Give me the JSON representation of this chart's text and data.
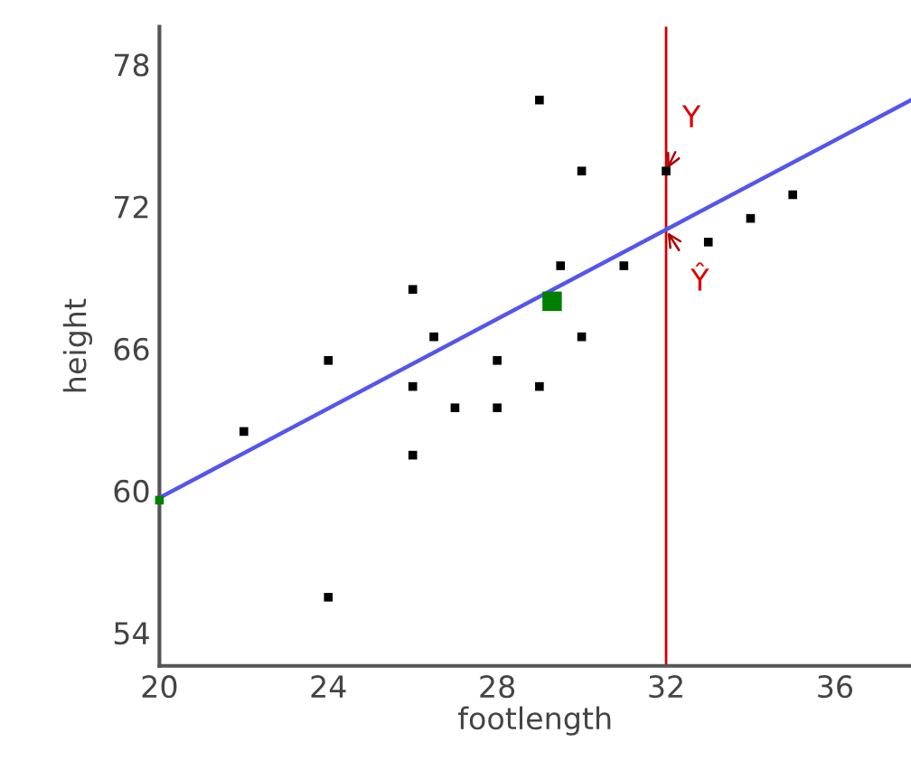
{
  "chart_data": {
    "type": "scatter",
    "xlabel": "footlength",
    "ylabel": "height",
    "xlim": [
      20,
      37.8
    ],
    "ylim": [
      52.6,
      79.6
    ],
    "xticks": [
      20,
      24,
      28,
      32,
      36
    ],
    "yticks": [
      54,
      60,
      66,
      72,
      78
    ],
    "grid": false,
    "legend": false,
    "marker": "square",
    "series": [
      {
        "color": "#000000",
        "x": [
          22,
          24,
          24,
          26,
          26,
          26,
          26.5,
          27,
          28,
          28,
          29,
          29,
          29.5,
          30,
          30,
          31,
          32,
          33,
          34,
          35
        ],
        "values": [
          62.5,
          65.5,
          55.5,
          68.5,
          64.4,
          61.5,
          66.5,
          63.5,
          63.5,
          65.5,
          76.5,
          64.4,
          69.5,
          73.5,
          66.5,
          69.5,
          73.5,
          70.5,
          71.5,
          72.5
        ]
      },
      {
        "color": "#008000",
        "x": [
          29.3
        ],
        "values": [
          68.0
        ]
      },
      {
        "color": "#008000",
        "x": [
          20
        ],
        "values": [
          59.6
        ]
      },
      {
        "type": "line",
        "marker": "none",
        "color": "#5555ee",
        "x": [
          20,
          37.8
        ],
        "values": [
          59.7,
          76.5
        ]
      }
    ],
    "ref_lines": [
      {
        "axis": "x",
        "value": 32,
        "color": "#cc0000"
      }
    ],
    "annotations": [
      {
        "text": "Y",
        "x": 32,
        "y": 73.5
      },
      {
        "text": "Ŷ",
        "x": 32,
        "y": 71.0
      }
    ]
  }
}
